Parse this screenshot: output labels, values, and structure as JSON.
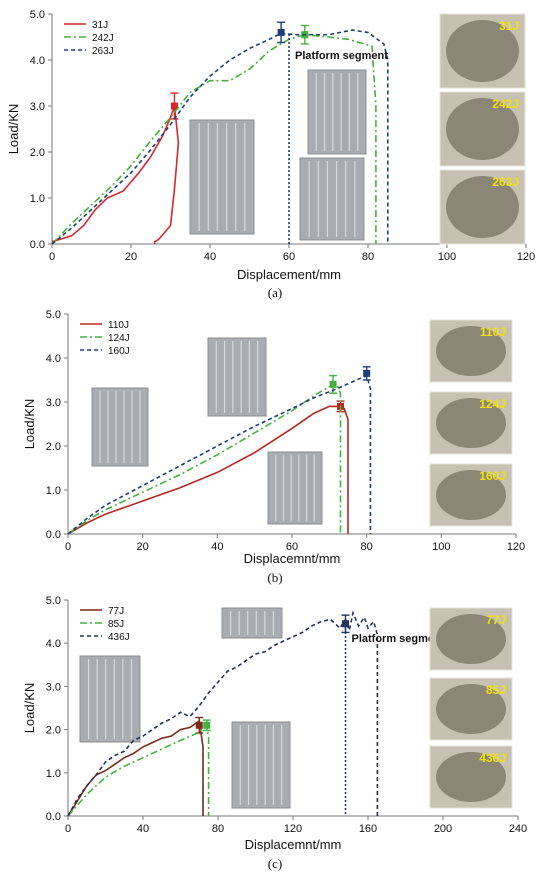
{
  "chart_data": [
    {
      "type": "line",
      "panel_label": "(a)",
      "xlabel": "Displacement/mm",
      "ylabel": "Load/KN",
      "xlim": [
        0,
        120
      ],
      "ylim": [
        0,
        5
      ],
      "xticks": [
        "0",
        "20",
        "40",
        "60",
        "80",
        "100",
        "120"
      ],
      "yticks": [
        "0.0",
        "1.0",
        "2.0",
        "3.0",
        "4.0",
        "5.0"
      ],
      "legend": "top-left",
      "annotation": "Platform segment",
      "platform_x": [
        60,
        85
      ],
      "series": [
        {
          "name": "31J",
          "color": "#d9262a",
          "dash": "solid",
          "points": [
            [
              0,
              0.05
            ],
            [
              2,
              0.1
            ],
            [
              5,
              0.18
            ],
            [
              8,
              0.4
            ],
            [
              11,
              0.75
            ],
            [
              14,
              1.0
            ],
            [
              18,
              1.15
            ],
            [
              22,
              1.55
            ],
            [
              25,
              1.9
            ],
            [
              28,
              2.35
            ],
            [
              30,
              2.75
            ],
            [
              31,
              3.0
            ],
            [
              32,
              2.2
            ],
            [
              31,
              1.2
            ],
            [
              30,
              0.4
            ],
            [
              27,
              0.1
            ],
            [
              26,
              0.05
            ],
            [
              26,
              0
            ]
          ],
          "marker": [
            31,
            3.0
          ],
          "error": 0.28
        },
        {
          "name": "242J",
          "color": "#44b23a",
          "dash": "dashdot",
          "points": [
            [
              0,
              0
            ],
            [
              5,
              0.45
            ],
            [
              10,
              0.85
            ],
            [
              15,
              1.25
            ],
            [
              20,
              1.7
            ],
            [
              25,
              2.25
            ],
            [
              30,
              2.75
            ],
            [
              35,
              3.3
            ],
            [
              40,
              3.55
            ],
            [
              45,
              3.55
            ],
            [
              50,
              3.8
            ],
            [
              55,
              4.2
            ],
            [
              60,
              4.45
            ],
            [
              64,
              4.55
            ],
            [
              70,
              4.5
            ],
            [
              75,
              4.45
            ],
            [
              79,
              4.35
            ],
            [
              81,
              4.3
            ],
            [
              82,
              3.0
            ],
            [
              82,
              0
            ]
          ],
          "marker": [
            64,
            4.55
          ],
          "error": 0.2
        },
        {
          "name": "263J",
          "color": "#1f3f7a",
          "dash": "dashed",
          "points": [
            [
              0,
              0
            ],
            [
              5,
              0.35
            ],
            [
              10,
              0.75
            ],
            [
              15,
              1.15
            ],
            [
              20,
              1.55
            ],
            [
              25,
              2.05
            ],
            [
              30,
              2.6
            ],
            [
              35,
              3.2
            ],
            [
              40,
              3.65
            ],
            [
              45,
              4.0
            ],
            [
              50,
              4.25
            ],
            [
              55,
              4.45
            ],
            [
              58,
              4.58
            ],
            [
              62,
              4.55
            ],
            [
              66,
              4.55
            ],
            [
              70,
              4.55
            ],
            [
              76,
              4.65
            ],
            [
              80,
              4.6
            ],
            [
              84,
              4.35
            ],
            [
              85,
              4.0
            ],
            [
              85,
              0
            ]
          ],
          "marker": [
            58,
            4.6
          ],
          "error": 0.22
        }
      ],
      "side_labels": [
        "31J",
        "242J",
        "263J"
      ]
    },
    {
      "type": "line",
      "panel_label": "(b)",
      "xlabel": "Displacemnt/mm",
      "ylabel": "Load/KN",
      "xlim": [
        0,
        120
      ],
      "ylim": [
        0,
        5
      ],
      "xticks": [
        "0",
        "20",
        "40",
        "60",
        "80",
        "100",
        "120"
      ],
      "yticks": [
        "0.0",
        "1.0",
        "2.0",
        "3.0",
        "4.0",
        "5.0"
      ],
      "legend": "top-left",
      "series": [
        {
          "name": "110J",
          "color": "#b5271f",
          "dash": "solid",
          "points": [
            [
              0,
              0
            ],
            [
              5,
              0.25
            ],
            [
              10,
              0.45
            ],
            [
              20,
              0.75
            ],
            [
              30,
              1.05
            ],
            [
              40,
              1.4
            ],
            [
              50,
              1.85
            ],
            [
              60,
              2.4
            ],
            [
              66,
              2.75
            ],
            [
              70,
              2.9
            ],
            [
              72,
              2.9
            ],
            [
              74,
              2.85
            ],
            [
              75,
              2.6
            ],
            [
              75,
              0
            ]
          ],
          "marker": [
            73,
            2.9
          ],
          "error": 0.12
        },
        {
          "name": "124J",
          "color": "#44b23a",
          "dash": "dashdot",
          "points": [
            [
              0,
              0
            ],
            [
              5,
              0.3
            ],
            [
              10,
              0.55
            ],
            [
              20,
              0.95
            ],
            [
              30,
              1.35
            ],
            [
              40,
              1.8
            ],
            [
              50,
              2.3
            ],
            [
              60,
              2.8
            ],
            [
              66,
              3.15
            ],
            [
              70,
              3.35
            ],
            [
              72,
              3.4
            ],
            [
              73,
              3.2
            ],
            [
              73,
              0
            ]
          ],
          "marker": [
            71,
            3.4
          ],
          "error": 0.2
        },
        {
          "name": "160J",
          "color": "#1f3f7a",
          "dash": "dashed",
          "points": [
            [
              0,
              0
            ],
            [
              5,
              0.35
            ],
            [
              10,
              0.65
            ],
            [
              20,
              1.1
            ],
            [
              30,
              1.55
            ],
            [
              40,
              2.0
            ],
            [
              50,
              2.45
            ],
            [
              60,
              2.85
            ],
            [
              66,
              3.1
            ],
            [
              72,
              3.3
            ],
            [
              76,
              3.45
            ],
            [
              80,
              3.6
            ],
            [
              81,
              3.3
            ],
            [
              81,
              0
            ]
          ],
          "marker": [
            80,
            3.65
          ],
          "error": 0.15
        }
      ],
      "side_labels": [
        "110J",
        "124J",
        "160J"
      ]
    },
    {
      "type": "line",
      "panel_label": "(c)",
      "xlabel": "Displacemnt/mm",
      "ylabel": "Load/KN",
      "xlim": [
        0,
        240
      ],
      "ylim": [
        0,
        5
      ],
      "xticks": [
        "0",
        "40",
        "80",
        "120",
        "160",
        "200",
        "240"
      ],
      "yticks": [
        "0.0",
        "1.0",
        "2.0",
        "3.0",
        "4.0",
        "5.0"
      ],
      "legend": "top-left",
      "annotation": "Platform segment",
      "platform_x": [
        148,
        165
      ],
      "series": [
        {
          "name": "77J",
          "color": "#7a2a17",
          "dash": "solid",
          "points": [
            [
              0,
              0
            ],
            [
              5,
              0.35
            ],
            [
              10,
              0.7
            ],
            [
              15,
              0.95
            ],
            [
              20,
              1.05
            ],
            [
              25,
              1.2
            ],
            [
              30,
              1.35
            ],
            [
              35,
              1.45
            ],
            [
              40,
              1.6
            ],
            [
              45,
              1.7
            ],
            [
              50,
              1.8
            ],
            [
              55,
              1.85
            ],
            [
              60,
              2.0
            ],
            [
              65,
              2.05
            ],
            [
              70,
              2.2
            ],
            [
              72,
              1.6
            ],
            [
              72,
              0
            ]
          ],
          "marker": [
            70,
            2.1
          ],
          "error": 0.18
        },
        {
          "name": "85J",
          "color": "#44b23a",
          "dash": "dashdot",
          "points": [
            [
              0,
              0
            ],
            [
              10,
              0.5
            ],
            [
              20,
              0.9
            ],
            [
              30,
              1.15
            ],
            [
              40,
              1.35
            ],
            [
              50,
              1.55
            ],
            [
              60,
              1.75
            ],
            [
              68,
              1.9
            ],
            [
              74,
              2.1
            ],
            [
              75,
              1.8
            ],
            [
              75,
              0
            ]
          ],
          "marker": [
            74,
            2.1
          ],
          "error": 0.12
        },
        {
          "name": "436J",
          "color": "#23305a",
          "dash": "dashed",
          "points": [
            [
              0,
              0
            ],
            [
              5,
              0.4
            ],
            [
              10,
              0.7
            ],
            [
              15,
              0.95
            ],
            [
              20,
              1.25
            ],
            [
              25,
              1.4
            ],
            [
              30,
              1.5
            ],
            [
              35,
              1.75
            ],
            [
              40,
              1.85
            ],
            [
              45,
              2.0
            ],
            [
              50,
              2.15
            ],
            [
              55,
              2.25
            ],
            [
              60,
              2.4
            ],
            [
              65,
              2.3
            ],
            [
              70,
              2.55
            ],
            [
              75,
              2.85
            ],
            [
              80,
              3.1
            ],
            [
              85,
              3.35
            ],
            [
              90,
              3.45
            ],
            [
              95,
              3.6
            ],
            [
              100,
              3.75
            ],
            [
              105,
              3.8
            ],
            [
              110,
              3.95
            ],
            [
              115,
              4.05
            ],
            [
              120,
              4.15
            ],
            [
              125,
              4.25
            ],
            [
              130,
              4.4
            ],
            [
              135,
              4.5
            ],
            [
              140,
              4.55
            ],
            [
              145,
              4.35
            ],
            [
              148,
              4.55
            ],
            [
              150,
              4.3
            ],
            [
              152,
              4.7
            ],
            [
              155,
              4.4
            ],
            [
              158,
              4.6
            ],
            [
              160,
              4.35
            ],
            [
              163,
              4.5
            ],
            [
              165,
              4.2
            ],
            [
              165,
              0
            ]
          ],
          "marker": [
            148,
            4.45
          ],
          "error": 0.2
        }
      ],
      "side_labels": [
        "77J",
        "85J",
        "436J"
      ]
    }
  ]
}
